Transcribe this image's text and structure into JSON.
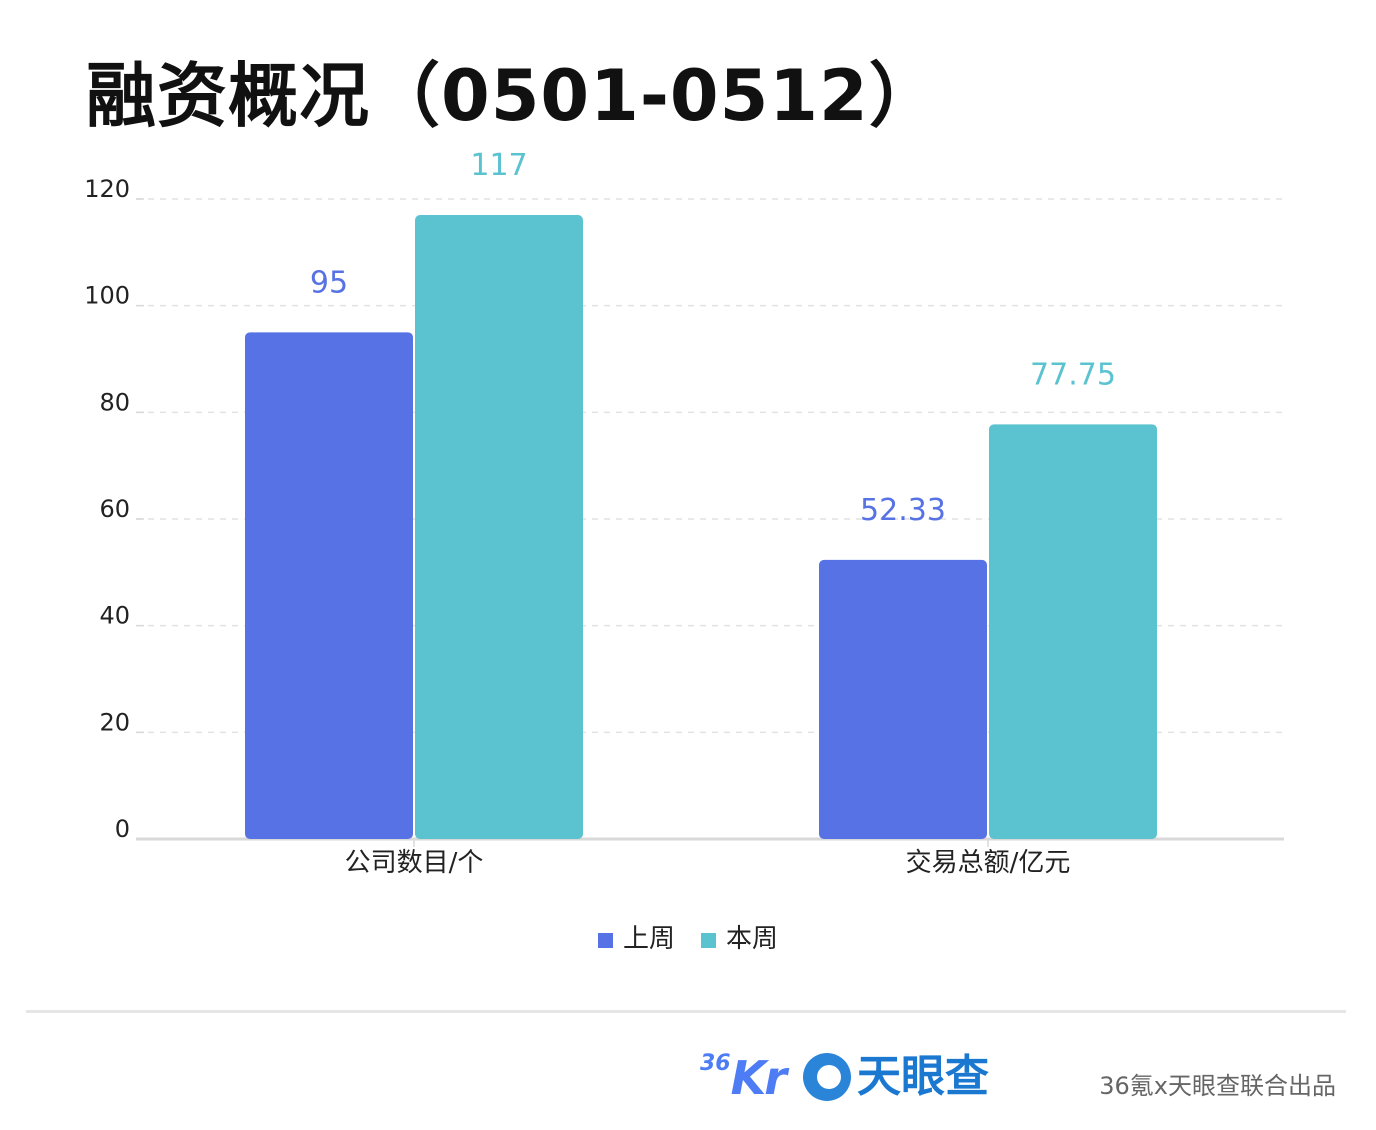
{
  "title": "融资概况（0501-0512）",
  "chart_data": {
    "type": "bar",
    "categories": [
      "公司数目/个",
      "交易总额/亿元"
    ],
    "series": [
      {
        "name": "上周",
        "values": [
          95,
          52.33
        ],
        "labels": [
          "95",
          "52.33"
        ],
        "color": "#5672e5"
      },
      {
        "name": "本周",
        "values": [
          117,
          77.75
        ],
        "labels": [
          "117",
          "77.75"
        ],
        "color": "#5bc3d0"
      }
    ],
    "ylim": [
      0,
      120
    ],
    "yticks": [
      0,
      20,
      40,
      60,
      80,
      100,
      120
    ],
    "grid": true,
    "legend": "bottom-center",
    "xlabel": "",
    "ylabel": ""
  },
  "footer": {
    "logo_36kr": "36Kr",
    "logo_tyc": "天眼查",
    "credit": "36氪x天眼查联合出品"
  },
  "colors": {
    "grid": "#e2e2e2",
    "axis": "#d9d9d9",
    "text": "#222222"
  }
}
